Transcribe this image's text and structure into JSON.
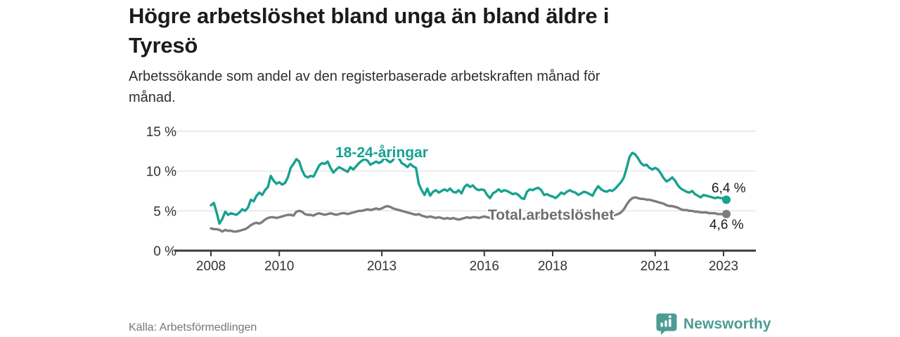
{
  "header": {
    "title": "Högre arbetslöshet bland unga än bland äldre i Tyresö",
    "title_lines": [
      "Högre arbetslöshet bland unga än bland äldre i",
      "Tyresö"
    ],
    "subtitle": "Arbetssökande som andel av den registerbaserade arbetskraften månad för månad.",
    "subtitle_lines": [
      "Arbetssökande som andel av den registerbaserade arbetskraften månad för",
      "månad."
    ]
  },
  "chart_data": {
    "type": "line",
    "frequency": "monthly",
    "x_start": "2008-01",
    "x_end": "2023-02",
    "x_tick_years": [
      2008,
      2010,
      2013,
      2016,
      2018,
      2021,
      2023
    ],
    "y_ticks": [
      {
        "label": "0 %",
        "value": 0
      },
      {
        "label": "5 %",
        "value": 5
      },
      {
        "label": "10 %",
        "value": 10
      },
      {
        "label": "15 %",
        "value": 15
      }
    ],
    "ylim": [
      0,
      15
    ],
    "grid": "horizontal",
    "series": [
      {
        "name": "18-24-åringar",
        "color": "#16a28f",
        "end_label": "6,4 %",
        "end_value": 6.4,
        "values": [
          5.7,
          6.0,
          4.8,
          3.4,
          4.0,
          4.9,
          4.5,
          4.7,
          4.6,
          4.5,
          4.8,
          5.2,
          5.0,
          5.4,
          6.4,
          6.2,
          6.9,
          7.3,
          7.0,
          7.6,
          8.0,
          9.4,
          8.8,
          8.4,
          8.6,
          8.3,
          8.5,
          9.2,
          10.4,
          10.9,
          11.5,
          11.2,
          10.1,
          9.4,
          9.2,
          9.4,
          9.3,
          10.0,
          10.7,
          11.0,
          10.9,
          11.2,
          10.4,
          9.8,
          10.2,
          10.5,
          10.3,
          10.1,
          9.9,
          10.5,
          10.2,
          10.6,
          11.0,
          11.3,
          11.5,
          11.3,
          10.8,
          11.0,
          11.2,
          11.0,
          11.2,
          11.7,
          11.3,
          11.1,
          11.4,
          12.2,
          11.6,
          11.0,
          10.8,
          10.5,
          10.9,
          10.6,
          10.4,
          8.4,
          7.6,
          7.0,
          7.8,
          6.9,
          7.4,
          7.6,
          7.3,
          7.5,
          7.7,
          7.5,
          7.8,
          7.4,
          7.3,
          7.6,
          7.2,
          8.0,
          8.3,
          8.0,
          8.2,
          7.8,
          7.6,
          7.7,
          7.6,
          7.0,
          6.6,
          7.2,
          7.4,
          7.7,
          7.4,
          7.6,
          7.5,
          7.3,
          7.1,
          7.2,
          7.0,
          6.6,
          6.5,
          7.4,
          7.7,
          7.6,
          7.8,
          7.9,
          7.6,
          7.0,
          7.1,
          6.9,
          6.8,
          6.6,
          6.9,
          7.3,
          7.1,
          7.4,
          7.6,
          7.4,
          7.3,
          7.0,
          7.2,
          7.4,
          7.3,
          7.1,
          6.9,
          7.6,
          8.1,
          7.7,
          7.5,
          7.4,
          7.6,
          7.5,
          7.8,
          8.2,
          8.6,
          9.2,
          10.4,
          11.8,
          12.3,
          12.1,
          11.6,
          11.0,
          10.7,
          10.8,
          10.4,
          10.2,
          10.4,
          10.2,
          9.7,
          9.1,
          8.7,
          8.9,
          9.2,
          8.8,
          8.2,
          7.8,
          7.6,
          7.4,
          7.3,
          7.5,
          7.1,
          6.9,
          6.7,
          7.0,
          6.9,
          6.8,
          6.7,
          6.6,
          6.7,
          6.6,
          6.6,
          6.4
        ]
      },
      {
        "name": "Total arbetslöshet",
        "color": "#7c7c7c",
        "end_label": "4,6 %",
        "end_value": 4.6,
        "values": [
          2.8,
          2.7,
          2.7,
          2.6,
          2.4,
          2.6,
          2.5,
          2.5,
          2.4,
          2.4,
          2.5,
          2.6,
          2.7,
          2.9,
          3.2,
          3.4,
          3.5,
          3.4,
          3.6,
          3.9,
          4.1,
          4.2,
          4.2,
          4.1,
          4.2,
          4.3,
          4.4,
          4.5,
          4.5,
          4.4,
          4.9,
          5.0,
          4.9,
          4.6,
          4.5,
          4.5,
          4.4,
          4.6,
          4.7,
          4.6,
          4.5,
          4.6,
          4.7,
          4.6,
          4.5,
          4.6,
          4.7,
          4.7,
          4.6,
          4.7,
          4.8,
          4.9,
          5.0,
          5.0,
          5.1,
          5.2,
          5.1,
          5.2,
          5.3,
          5.2,
          5.3,
          5.5,
          5.6,
          5.5,
          5.3,
          5.2,
          5.1,
          5.0,
          4.9,
          4.8,
          4.7,
          4.6,
          4.5,
          4.6,
          4.4,
          4.3,
          4.2,
          4.3,
          4.2,
          4.1,
          4.2,
          4.1,
          4.0,
          4.1,
          4.0,
          4.1,
          4.0,
          3.9,
          4.0,
          4.1,
          4.2,
          4.1,
          4.2,
          4.2,
          4.1,
          4.2,
          4.3,
          4.2,
          4.1,
          4.2,
          4.2,
          4.3,
          4.2,
          4.2,
          4.1,
          4.1,
          4.2,
          4.2,
          4.1,
          4.0,
          4.0,
          4.1,
          4.2,
          4.1,
          4.2,
          4.2,
          4.1,
          4.0,
          4.1,
          4.1,
          4.0,
          4.0,
          4.1,
          4.2,
          4.1,
          4.2,
          4.3,
          4.2,
          4.1,
          4.1,
          4.2,
          4.3,
          4.2,
          4.1,
          4.1,
          4.3,
          4.4,
          4.3,
          4.3,
          4.2,
          4.3,
          4.4,
          4.5,
          4.6,
          4.8,
          5.2,
          5.8,
          6.3,
          6.6,
          6.7,
          6.6,
          6.5,
          6.5,
          6.4,
          6.4,
          6.3,
          6.2,
          6.1,
          6.0,
          5.9,
          5.7,
          5.6,
          5.6,
          5.5,
          5.4,
          5.2,
          5.1,
          5.1,
          5.0,
          5.0,
          4.9,
          4.9,
          4.8,
          4.8,
          4.8,
          4.7,
          4.7,
          4.7,
          4.6,
          4.6,
          4.6,
          4.6
        ]
      }
    ]
  },
  "footer": {
    "source": "Källa: Arbetsförmedlingen",
    "brand": "Newsworthy"
  },
  "colors": {
    "youth_line": "#16a28f",
    "total_line": "#7c7c7c",
    "axis": "#3b3b3b",
    "grid": "#e4e4e4",
    "tick_text": "#333333",
    "title_text": "#1b1b1b",
    "source_text": "#767676",
    "brand_teal": "#4c9c93"
  }
}
